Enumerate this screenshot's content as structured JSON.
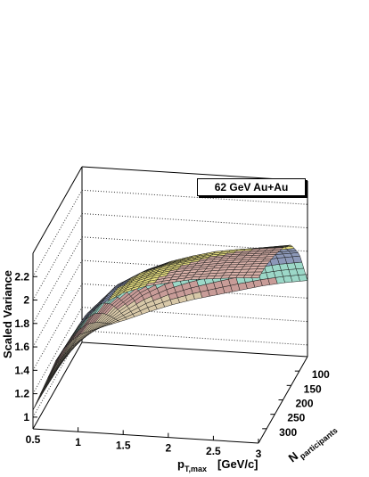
{
  "legend": {
    "label": "62 GeV Au+Au"
  },
  "chart_data": {
    "type": "surface",
    "title": "",
    "legend": "62 GeV Au+Au",
    "zlabel": "Scaled Variance",
    "xlabel_main": "p",
    "xlabel_sub": "T,max",
    "xlabel_unit": "[GeV/c]",
    "ylabel_main": "N",
    "ylabel_sub": "participants",
    "x_range": [
      0.5,
      3
    ],
    "y_range": [
      50,
      350
    ],
    "z_range": [
      0.9,
      2.4
    ],
    "x_ticks": [
      "0.5",
      "1",
      "1.5",
      "2",
      "2.5",
      "3"
    ],
    "y_ticks": [
      "100",
      "150",
      "200",
      "250",
      "300"
    ],
    "z_ticks": [
      "1",
      "1.2",
      "1.4",
      "1.6",
      "1.8",
      "2",
      "2.2"
    ],
    "npart_grid": [
      50,
      100,
      150,
      200,
      250,
      300,
      350
    ],
    "pt_grid": [
      0.5,
      0.75,
      1.0,
      1.25,
      1.5,
      1.75,
      2.0,
      2.25,
      2.5,
      2.75,
      3.0
    ],
    "scaled_variance": [
      [
        0.98,
        1.05,
        1.12,
        1.2,
        1.27,
        1.33,
        1.38,
        1.43,
        1.48,
        1.52,
        1.55
      ],
      [
        1.0,
        1.15,
        1.32,
        1.47,
        1.58,
        1.66,
        1.73,
        1.79,
        1.83,
        1.87,
        1.9
      ],
      [
        1.02,
        1.25,
        1.5,
        1.68,
        1.8,
        1.88,
        1.95,
        2.0,
        2.04,
        2.07,
        2.1
      ],
      [
        1.04,
        1.35,
        1.63,
        1.82,
        1.94,
        2.02,
        2.08,
        2.13,
        2.16,
        2.18,
        2.2
      ],
      [
        1.05,
        1.42,
        1.72,
        1.92,
        2.03,
        2.1,
        2.15,
        2.19,
        2.22,
        2.24,
        2.26
      ],
      [
        1.06,
        1.47,
        1.78,
        1.97,
        2.08,
        2.15,
        2.2,
        2.23,
        2.26,
        2.28,
        2.3
      ],
      [
        1.06,
        1.49,
        1.8,
        2.0,
        2.11,
        2.18,
        2.22,
        2.26,
        2.28,
        2.3,
        2.31
      ]
    ],
    "colors": {
      "low": "#d8c8a8",
      "pink": "#c89c98",
      "cyan": "#9cd8c8",
      "blue": "#8c98b8",
      "yellow": "#e8e080",
      "top": "#d8b0a8"
    }
  }
}
